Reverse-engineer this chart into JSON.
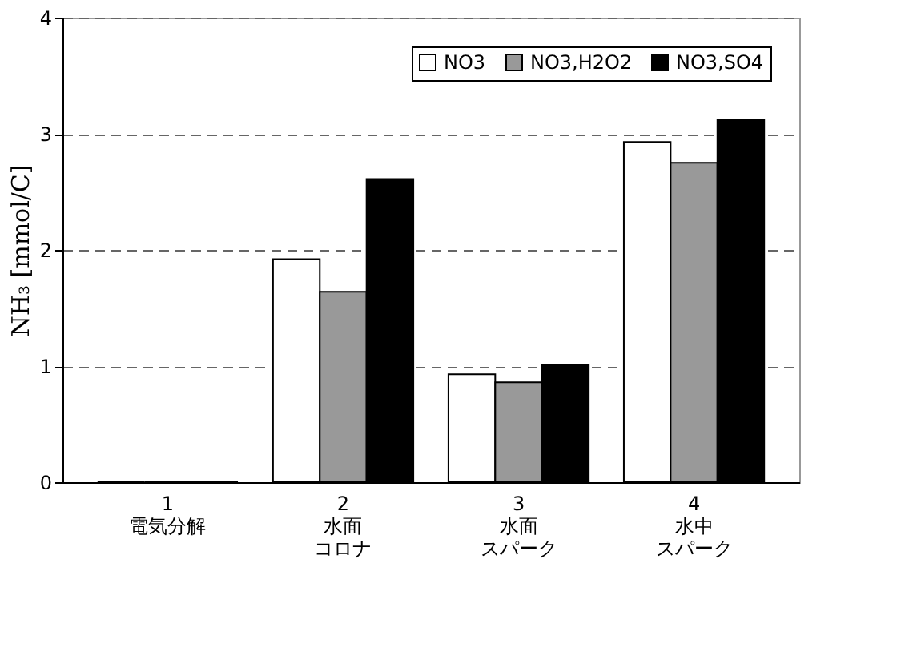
{
  "chart_data": {
    "type": "bar",
    "ylabel": "NH₃ [mmol/C]",
    "categories": [
      "1\n電気分解",
      "2\n水面コロナ",
      "3\n水面スパーク",
      "4\n水中スパーク"
    ],
    "series": [
      {
        "name": "NO3",
        "color": "#ffffff",
        "values": [
          0,
          1.92,
          0.93,
          2.93
        ]
      },
      {
        "name": "NO3,H2O2",
        "color": "#999999",
        "values": [
          0,
          1.64,
          0.86,
          2.75
        ]
      },
      {
        "name": "NO3,SO4",
        "color": "#000000",
        "values": [
          0,
          2.61,
          1.01,
          3.12
        ]
      }
    ],
    "ylim": [
      0,
      4
    ],
    "yticks": [
      0,
      1,
      2,
      3,
      4
    ],
    "grid": "y",
    "legend": "top right"
  }
}
